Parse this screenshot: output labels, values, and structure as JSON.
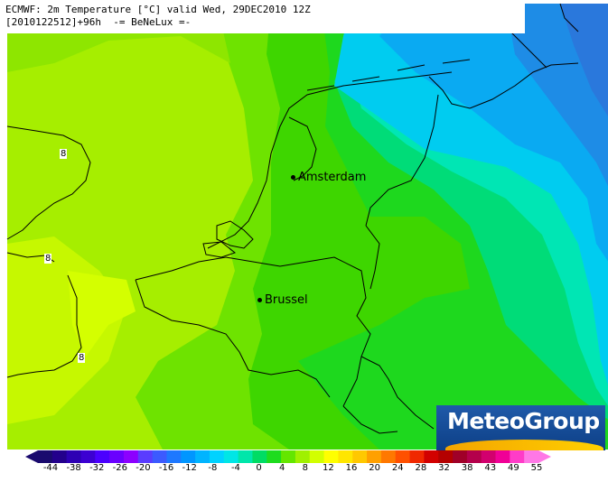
{
  "header": {
    "line1": "ECMWF: 2m Temperature [°C] valid Wed, 29DEC2010 12Z",
    "line2": "[2010122512]+96h  -= BeNeLux =-"
  },
  "cities": [
    {
      "name": "Amsterdam"
    },
    {
      "name": "Brussel"
    }
  ],
  "contour_labels": [
    "8",
    "8",
    "8"
  ],
  "logo": {
    "text": "MeteoGroup"
  },
  "colorbar": {
    "ticks": [
      "-44",
      "-38",
      "-32",
      "-26",
      "-20",
      "-16",
      "-12",
      "-8",
      "-4",
      "0",
      "4",
      "8",
      "12",
      "16",
      "20",
      "24",
      "28",
      "32",
      "38",
      "43",
      "49",
      "55"
    ],
    "colors": [
      "#1a0a6e",
      "#23008c",
      "#2d00b4",
      "#3c00d2",
      "#4b00ff",
      "#6a00ff",
      "#8c00ff",
      "#5a3cff",
      "#3c5aff",
      "#1e78ff",
      "#0096ff",
      "#00b4ff",
      "#00d2ff",
      "#00e6e6",
      "#00e6aa",
      "#00dc64",
      "#1edc1e",
      "#64e600",
      "#a0f000",
      "#d2ff00",
      "#ffff00",
      "#ffe600",
      "#ffc800",
      "#ffa000",
      "#ff7800",
      "#ff5000",
      "#f02800",
      "#d20000",
      "#b40000",
      "#a00028",
      "#b4004b",
      "#d2006e",
      "#f00096",
      "#ff3cc8",
      "#ff78e6"
    ]
  }
}
